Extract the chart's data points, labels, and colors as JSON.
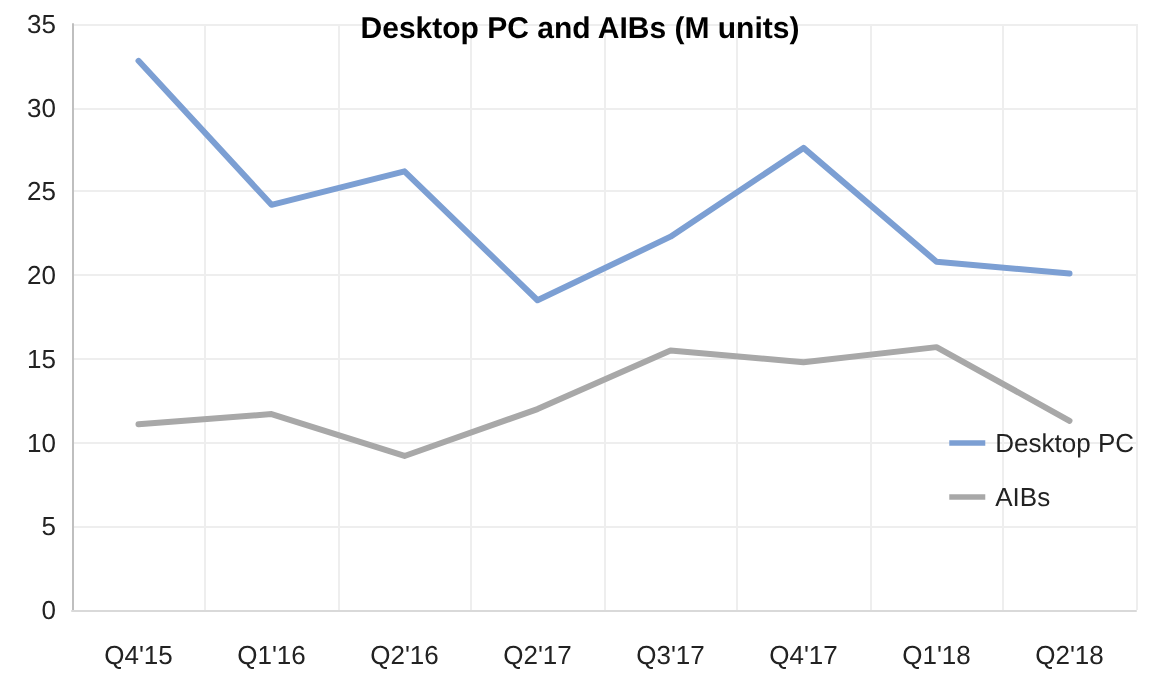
{
  "chart_data": {
    "type": "line",
    "title": "Desktop PC and AIBs (M units)",
    "categories": [
      "Q4'15",
      "Q1'16",
      "Q2'16",
      "Q2'17",
      "Q3'17",
      "Q4'17",
      "Q1'18",
      "Q2'18"
    ],
    "series": [
      {
        "name": "Desktop PC",
        "color": "#7c9fd3",
        "values": [
          32.8,
          24.2,
          26.2,
          18.5,
          22.3,
          27.6,
          20.8,
          20.1
        ]
      },
      {
        "name": "AIBs",
        "color": "#a8a8a8",
        "values": [
          11.1,
          11.7,
          9.2,
          12.0,
          15.5,
          14.8,
          15.7,
          11.3
        ]
      }
    ],
    "ylim": [
      0,
      35
    ],
    "yticks": [
      0,
      5,
      10,
      15,
      20,
      25,
      30,
      35
    ],
    "grid": true,
    "legend": "right",
    "marker": "none",
    "line_style": "solid"
  }
}
